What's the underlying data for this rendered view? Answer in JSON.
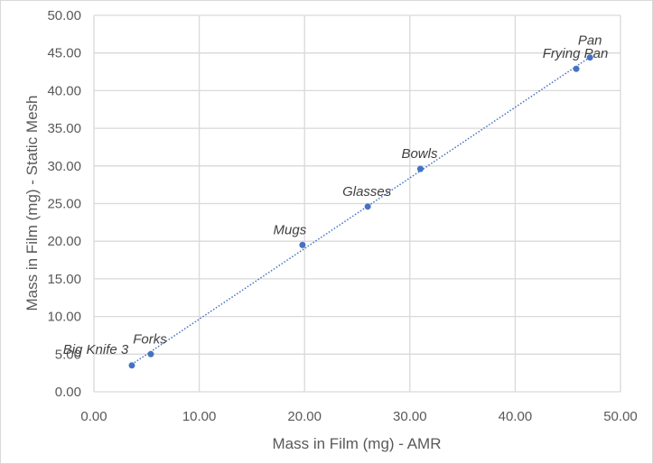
{
  "chart_data": {
    "type": "scatter",
    "title": "",
    "xlabel": "Mass in Film (mg) - AMR",
    "ylabel": "Mass in Film (mg) - Static Mesh",
    "xlim": [
      0,
      50
    ],
    "ylim": [
      0,
      50
    ],
    "x_ticks": [
      "0.00",
      "10.00",
      "20.00",
      "30.00",
      "40.00",
      "50.00"
    ],
    "y_ticks": [
      "0.00",
      "5.00",
      "10.00",
      "15.00",
      "20.00",
      "25.00",
      "30.00",
      "35.00",
      "40.00",
      "45.00",
      "50.00"
    ],
    "grid": true,
    "legend": null,
    "trendline": {
      "type": "linear",
      "style": "dotted",
      "color": "#4472c4"
    },
    "series": [
      {
        "name": "Items",
        "color": "#4472c4",
        "points": [
          {
            "label": "Big Knife 3",
            "x": 3.6,
            "y": 3.5
          },
          {
            "label": "Forks",
            "x": 5.4,
            "y": 5.0
          },
          {
            "label": "Mugs",
            "x": 19.8,
            "y": 19.5
          },
          {
            "label": "Glasses",
            "x": 26.0,
            "y": 24.6
          },
          {
            "label": "Bowls",
            "x": 31.0,
            "y": 29.6
          },
          {
            "label": "Frying Pan",
            "x": 45.8,
            "y": 42.9
          },
          {
            "label": "Pan",
            "x": 47.1,
            "y": 44.4
          }
        ]
      }
    ]
  },
  "colors": {
    "marker": "#4472c4",
    "grid": "#d9d9d9",
    "text": "#595959"
  }
}
